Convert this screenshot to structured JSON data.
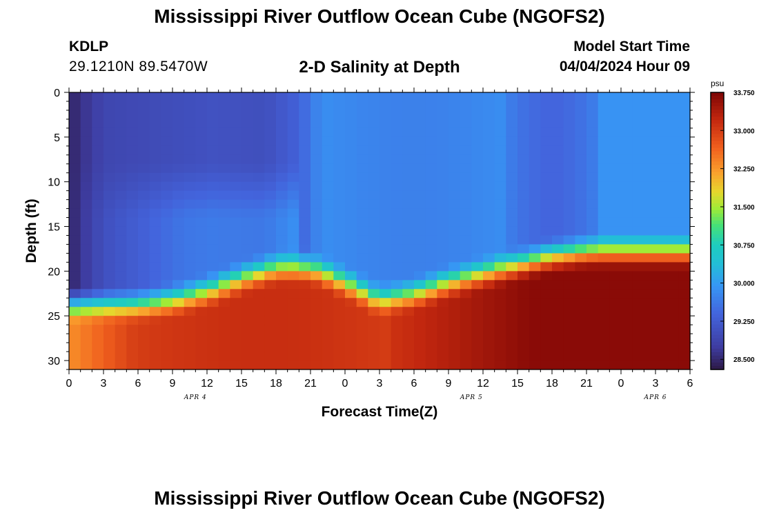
{
  "header": {
    "title": "Mississippi River Outflow Ocean Cube (NGOFS2)",
    "station_id": "KDLP",
    "station_coords": "29.1210N  89.5470W",
    "plot_title": "2-D Salinity at Depth",
    "model_start_label": "Model Start Time",
    "model_start_value": "04/04/2024 Hour 09"
  },
  "footer": {
    "title": "Mississippi River Outflow Ocean Cube (NGOFS2)"
  },
  "chart_data": {
    "type": "heatmap",
    "title": "2-D Salinity at Depth",
    "xlabel": "Forecast Time(Z)",
    "ylabel": "Depth (ft)",
    "x_range_hours": [
      0,
      54
    ],
    "y_range_ft": [
      0,
      31
    ],
    "y_reversed": true,
    "x_tick_labels": [
      "0",
      "3",
      "6",
      "9",
      "12",
      "15",
      "18",
      "21",
      "0",
      "3",
      "6",
      "9",
      "12",
      "15",
      "18",
      "21",
      "0",
      "3",
      "6"
    ],
    "y_tick_labels": [
      "0",
      "5",
      "10",
      "15",
      "20",
      "25",
      "30"
    ],
    "y_tick_values": [
      0,
      5,
      10,
      15,
      20,
      25,
      30
    ],
    "date_labels": [
      {
        "label": "APR 4",
        "at_hour": 11
      },
      {
        "label": "APR 5",
        "at_hour": 35
      },
      {
        "label": "APR 6",
        "at_hour": 51
      }
    ],
    "colorbar": {
      "unit": "psu",
      "min": 28.3,
      "max": 33.75,
      "ticks": [
        "33.750",
        "33.000",
        "32.250",
        "31.500",
        "30.750",
        "30.000",
        "29.250",
        "28.500"
      ],
      "tick_values": [
        33.75,
        33.0,
        32.25,
        31.5,
        30.75,
        30.0,
        29.25,
        28.5
      ]
    },
    "halocline_depth_profile": {
      "hours": [
        0,
        6,
        9,
        12,
        15,
        18,
        21,
        24,
        27,
        30,
        33,
        36,
        39,
        42,
        45,
        48,
        51,
        54
      ],
      "depth_ft": [
        22.5,
        22.5,
        22.0,
        21.0,
        19.5,
        18.3,
        18.3,
        20.0,
        22.0,
        21.3,
        20.0,
        19.0,
        18.0,
        17.0,
        16.5,
        16.5,
        16.5,
        16.5
      ]
    },
    "grid": false,
    "legend": "colorbar-right"
  }
}
